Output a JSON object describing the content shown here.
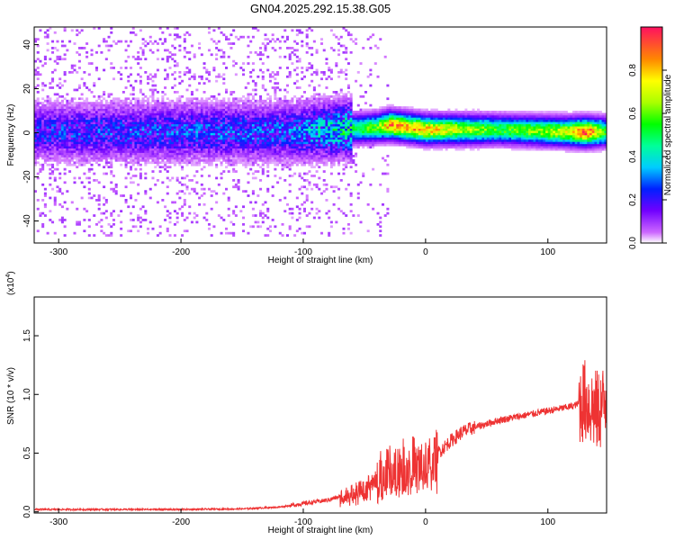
{
  "figure": {
    "title": "GN04.2025.292.15.38.G05"
  },
  "chart_data": [
    {
      "type": "heatmap",
      "title": "",
      "xlabel": "Height of straight line (km)",
      "ylabel": "Frequency (Hz)",
      "xlim": [
        -320,
        148
      ],
      "ylim": [
        -50,
        48
      ],
      "xticks": [
        -300,
        -200,
        -100,
        0,
        100
      ],
      "xtick_labels": [
        "-300",
        "-200",
        "-100",
        "0",
        "100"
      ],
      "yticks": [
        -40,
        -20,
        0,
        20,
        40
      ],
      "ytick_labels": [
        "-40",
        "-20",
        "0",
        "20",
        "40"
      ],
      "grid": false,
      "description_of_values": "normalized spectral amplitude vs frequency and height",
      "ridge": [
        {
          "x": -320,
          "freq": 0,
          "amp": 0.25
        },
        {
          "x": -200,
          "freq": 0,
          "amp": 0.28
        },
        {
          "x": -110,
          "freq": 0,
          "amp": 0.3
        },
        {
          "x": -70,
          "freq": 1,
          "amp": 0.45
        },
        {
          "x": -40,
          "freq": 2,
          "amp": 0.6
        },
        {
          "x": -30,
          "freq": 3,
          "amp": 0.85
        },
        {
          "x": 0,
          "freq": 1,
          "amp": 0.8
        },
        {
          "x": 10,
          "freq": 1,
          "amp": 0.75
        },
        {
          "x": 60,
          "freq": 1,
          "amp": 0.55
        },
        {
          "x": 115,
          "freq": 0,
          "amp": 0.7
        },
        {
          "x": 130,
          "freq": 0,
          "amp": 0.95
        },
        {
          "x": 148,
          "freq": 0,
          "amp": 0.5
        }
      ],
      "colorbar": {
        "label": "Normalized spectral amplitude",
        "range": [
          0,
          1
        ],
        "ticks": [
          0,
          0.2,
          0.4,
          0.6,
          0.8
        ],
        "tick_labels": [
          "0.0",
          "0.2",
          "0.4",
          "0.6",
          "0.8"
        ]
      }
    },
    {
      "type": "line",
      "title": "",
      "xlabel": "Height of straight line (km)",
      "ylabel": "SNR (10 * v/v)",
      "y_multiplier_label": "(x10",
      "y_multiplier_exp": "4",
      "xlim": [
        -320,
        148
      ],
      "ylim": [
        -0.01,
        1.83
      ],
      "xticks": [
        -300,
        -200,
        -100,
        0,
        100
      ],
      "xtick_labels": [
        "-300",
        "-200",
        "-100",
        "0",
        "100"
      ],
      "yticks": [
        0,
        0.5,
        1.0,
        1.5
      ],
      "ytick_labels": [
        "0.0",
        "0.5",
        "1.0",
        "1.5"
      ],
      "grid": false,
      "series": [
        {
          "color": "#ee3333",
          "x": [
            -320,
            -250,
            -200,
            -150,
            -120,
            -100,
            -80,
            -60,
            -50,
            -40,
            -30,
            -20,
            -10,
            0,
            10,
            20,
            30,
            40,
            50,
            60,
            70,
            80,
            90,
            100,
            110,
            120,
            125,
            130,
            135,
            140,
            145,
            148
          ],
          "y": [
            0.02,
            0.02,
            0.02,
            0.025,
            0.04,
            0.07,
            0.1,
            0.16,
            0.22,
            0.28,
            0.35,
            0.4,
            0.43,
            0.38,
            0.5,
            0.6,
            0.68,
            0.72,
            0.75,
            0.78,
            0.8,
            0.82,
            0.84,
            0.86,
            0.88,
            0.9,
            0.92,
            0.95,
            0.9,
            0.85,
            0.9,
            1.0
          ]
        }
      ]
    }
  ]
}
